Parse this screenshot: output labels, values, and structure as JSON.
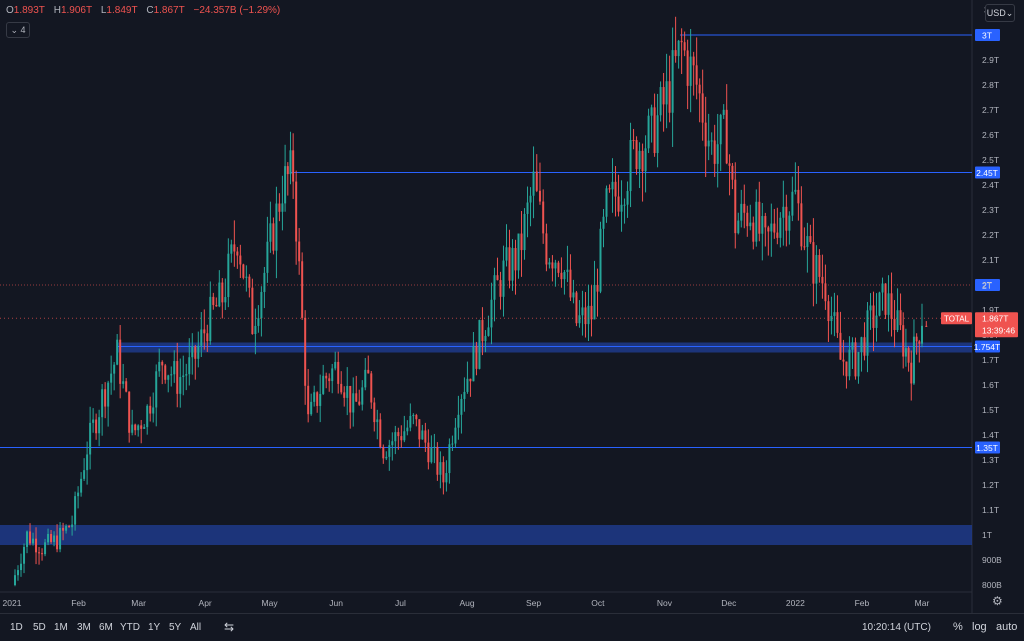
{
  "legend": {
    "o_label": "O",
    "o_value": "1.893T",
    "h_label": "H",
    "h_value": "1.906T",
    "l_label": "L",
    "l_value": "1.849T",
    "c_label": "C",
    "c_value": "1.867T",
    "change": "−24.357B (−1.29%)",
    "collapse": "⌄ 4"
  },
  "currency": "USD⌄",
  "axis_top_label": "3",
  "time_ranges": [
    "1D",
    "5D",
    "1M",
    "3M",
    "6M",
    "YTD",
    "1Y",
    "5Y",
    "All"
  ],
  "clock": "10:20:14 (UTC)",
  "options": {
    "percent": "%",
    "log": "log",
    "auto": "auto"
  },
  "colors": {
    "up": "#26a69a",
    "down": "#ef5350",
    "level": "#2962ff",
    "zone": "#1e3a8a",
    "bg": "#131722",
    "price_tag": "#ef5350"
  },
  "chart_data": {
    "type": "candlestick",
    "symbol": "TOTAL",
    "x_ticks": [
      "2021",
      "Feb",
      "Mar",
      "Apr",
      "May",
      "Jun",
      "Jul",
      "Aug",
      "Sep",
      "Oct",
      "Nov",
      "Dec",
      "2022",
      "Feb",
      "Mar"
    ],
    "y_ticks": [
      "800B",
      "900B",
      "1T",
      "1.1T",
      "1.2T",
      "1.3T",
      "1.4T",
      "1.5T",
      "1.6T",
      "1.7T",
      "1.8T",
      "1.9T",
      "2T",
      "2.1T",
      "2.2T",
      "2.3T",
      "2.4T",
      "2.5T",
      "2.6T",
      "2.7T",
      "2.8T",
      "2.9T"
    ],
    "y_range": [
      "800B",
      "3T"
    ],
    "horizontal_levels": [
      "3T",
      "2.45T",
      "2T",
      "1.754T",
      "1.35T"
    ],
    "zones": [
      {
        "from": "1.73T",
        "to": "1.77T"
      },
      {
        "from": "0.96T",
        "to": "1.04T"
      }
    ],
    "last_price": "1.867T",
    "last_price_countdown": "13:39:46",
    "last_price_label": "TOTAL",
    "trend_points": [
      [
        "2021-01-01",
        0.8
      ],
      [
        "2021-01-08",
        1.0
      ],
      [
        "2021-01-15",
        0.95
      ],
      [
        "2021-01-22",
        0.98
      ],
      [
        "2021-01-29",
        1.05
      ],
      [
        "2021-02-05",
        1.35
      ],
      [
        "2021-02-12",
        1.55
      ],
      [
        "2021-02-19",
        1.72
      ],
      [
        "2021-02-26",
        1.4
      ],
      [
        "2021-03-05",
        1.5
      ],
      [
        "2021-03-12",
        1.7
      ],
      [
        "2021-03-19",
        1.62
      ],
      [
        "2021-03-26",
        1.68
      ],
      [
        "2021-04-02",
        1.85
      ],
      [
        "2021-04-09",
        1.95
      ],
      [
        "2021-04-16",
        2.2
      ],
      [
        "2021-04-23",
        1.85
      ],
      [
        "2021-04-30",
        2.1
      ],
      [
        "2021-05-07",
        2.4
      ],
      [
        "2021-05-12",
        2.45
      ],
      [
        "2021-05-19",
        1.45
      ],
      [
        "2021-05-26",
        1.62
      ],
      [
        "2021-06-02",
        1.68
      ],
      [
        "2021-06-09",
        1.5
      ],
      [
        "2021-06-16",
        1.62
      ],
      [
        "2021-06-23",
        1.35
      ],
      [
        "2021-06-30",
        1.4
      ],
      [
        "2021-07-07",
        1.45
      ],
      [
        "2021-07-14",
        1.35
      ],
      [
        "2021-07-21",
        1.22
      ],
      [
        "2021-07-28",
        1.55
      ],
      [
        "2021-08-04",
        1.7
      ],
      [
        "2021-08-11",
        1.9
      ],
      [
        "2021-08-18",
        2.05
      ],
      [
        "2021-08-25",
        2.12
      ],
      [
        "2021-09-01",
        2.4
      ],
      [
        "2021-09-07",
        2.15
      ],
      [
        "2021-09-14",
        2.1
      ],
      [
        "2021-09-21",
        1.85
      ],
      [
        "2021-09-28",
        1.88
      ],
      [
        "2021-10-05",
        2.3
      ],
      [
        "2021-10-12",
        2.4
      ],
      [
        "2021-10-19",
        2.55
      ],
      [
        "2021-10-26",
        2.6
      ],
      [
        "2021-11-02",
        2.75
      ],
      [
        "2021-11-09",
        2.95
      ],
      [
        "2021-11-16",
        2.8
      ],
      [
        "2021-11-23",
        2.55
      ],
      [
        "2021-11-30",
        2.6
      ],
      [
        "2021-12-04",
        2.25
      ],
      [
        "2021-12-11",
        2.3
      ],
      [
        "2021-12-18",
        2.15
      ],
      [
        "2021-12-25",
        2.3
      ],
      [
        "2022-01-01",
        2.35
      ],
      [
        "2022-01-08",
        2.1
      ],
      [
        "2022-01-15",
        2.0
      ],
      [
        "2022-01-22",
        1.7
      ],
      [
        "2022-01-29",
        1.7
      ],
      [
        "2022-02-05",
        1.85
      ],
      [
        "2022-02-12",
        1.95
      ],
      [
        "2022-02-19",
        1.8
      ],
      [
        "2022-02-24",
        1.68
      ],
      [
        "2022-03-01",
        1.88
      ],
      [
        "2022-03-03",
        1.867
      ]
    ]
  }
}
